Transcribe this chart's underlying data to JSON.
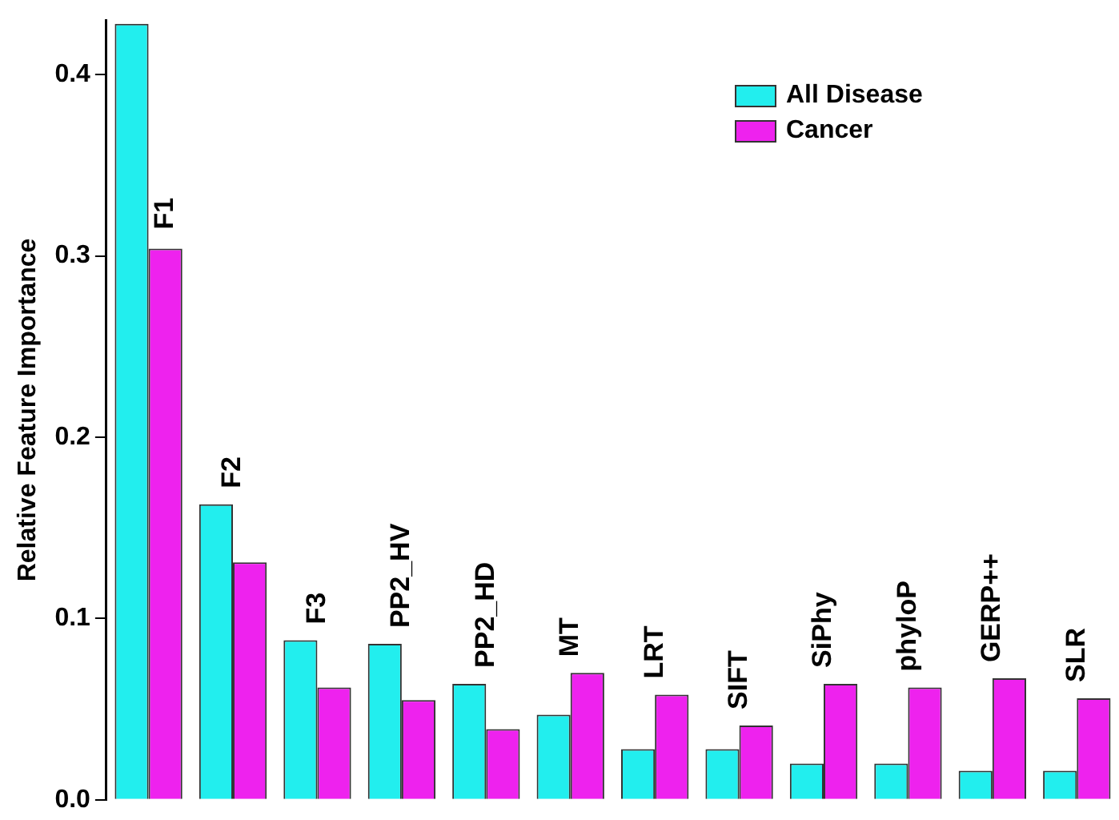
{
  "chart_data": {
    "type": "bar",
    "ylabel": "Relative Feature Importance",
    "categories": [
      "F1",
      "F2",
      "F3",
      "PP2_HV",
      "PP2_HD",
      "MT",
      "LRT",
      "SIFT",
      "SiPhy",
      "phyloP",
      "GERP++",
      "SLR"
    ],
    "series": [
      {
        "name": "All Disease",
        "color": "#22eeee",
        "values": [
          0.428,
          0.163,
          0.088,
          0.086,
          0.064,
          0.047,
          0.028,
          0.028,
          0.02,
          0.02,
          0.016,
          0.016
        ]
      },
      {
        "name": "Cancer",
        "color": "#ee22ee",
        "values": [
          0.304,
          0.131,
          0.062,
          0.055,
          0.039,
          0.07,
          0.058,
          0.041,
          0.064,
          0.062,
          0.067,
          0.056
        ]
      }
    ],
    "ylim": [
      0,
      0.43
    ],
    "yticks": [
      {
        "value": 0,
        "label": "0.0"
      },
      0.1,
      0.2,
      0.3,
      0.4
    ],
    "grid": false,
    "legend": "top right"
  }
}
